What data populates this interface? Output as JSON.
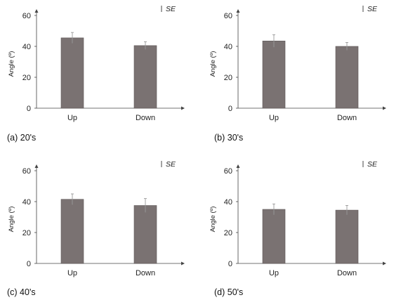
{
  "chart_data": [
    {
      "type": "bar",
      "caption": "(a) 20's",
      "categories": [
        "Up",
        "Down"
      ],
      "values": [
        45.5,
        40.5
      ],
      "error": [
        3.5,
        2.5
      ],
      "ylabel": "Angle (º)",
      "ylim": [
        0,
        60
      ],
      "yticks": [
        0,
        20,
        40,
        60
      ],
      "legend": "SE",
      "legend_position": "top-right",
      "color": "#7a7272"
    },
    {
      "type": "bar",
      "caption": "(b) 30's",
      "categories": [
        "Up",
        "Down"
      ],
      "values": [
        43.5,
        40
      ],
      "error": [
        4,
        2.5
      ],
      "ylabel": "Angle (º)",
      "ylim": [
        0,
        60
      ],
      "yticks": [
        0,
        20,
        40,
        60
      ],
      "legend": "SE",
      "legend_position": "top-right",
      "color": "#7a7272"
    },
    {
      "type": "bar",
      "caption": "(c) 40's",
      "categories": [
        "Up",
        "Down"
      ],
      "values": [
        41.5,
        37.5
      ],
      "error": [
        3.5,
        4.5
      ],
      "ylabel": "Angle (º)",
      "ylim": [
        0,
        60
      ],
      "yticks": [
        0,
        20,
        40,
        60
      ],
      "legend": "SE",
      "legend_position": "top-right",
      "color": "#7a7272"
    },
    {
      "type": "bar",
      "caption": "(d) 50's",
      "categories": [
        "Up",
        "Down"
      ],
      "values": [
        35,
        34.5
      ],
      "error": [
        3.5,
        3
      ],
      "ylabel": "Angle (º)",
      "ylim": [
        0,
        60
      ],
      "yticks": [
        0,
        20,
        40,
        60
      ],
      "legend": "SE",
      "legend_position": "top-right",
      "color": "#7a7272"
    }
  ]
}
